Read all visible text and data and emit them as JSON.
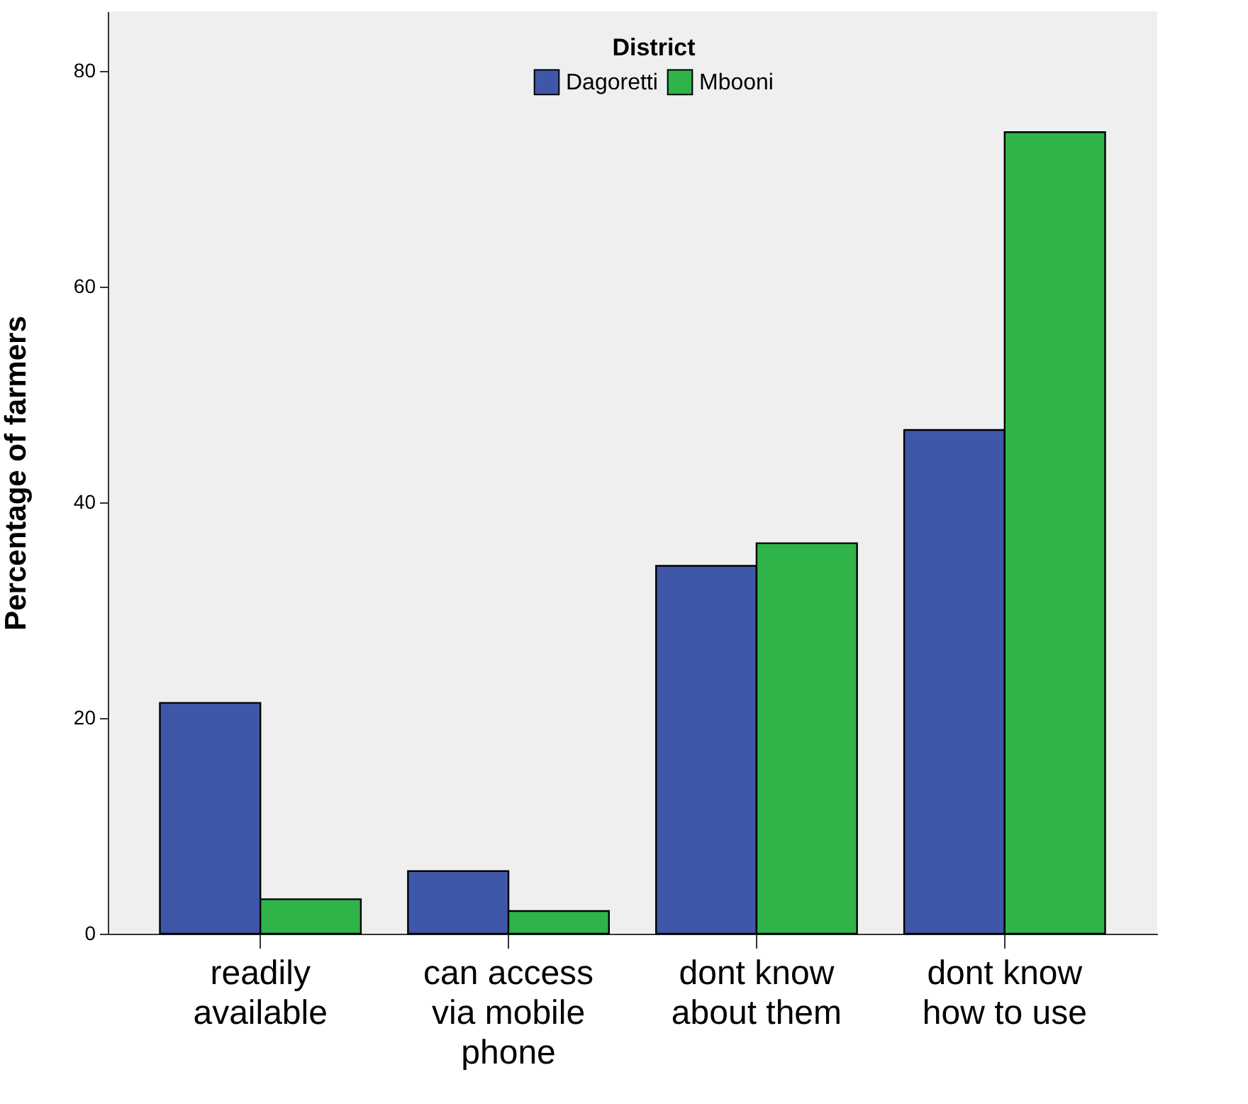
{
  "chart_data": {
    "type": "bar",
    "ylabel": "Percentage of farmers",
    "legend_title": "District",
    "categories": [
      "readily available",
      "can access via mobile phone",
      "dont know about them",
      "dont know how to use"
    ],
    "series": [
      {
        "name": "Dagoretti",
        "color": "#3f57a9",
        "values": [
          21.4,
          5.8,
          34.1,
          46.7
        ]
      },
      {
        "name": "Mbooni",
        "color": "#2fb44a",
        "values": [
          3.2,
          2.1,
          36.2,
          74.3
        ]
      }
    ],
    "ylim": [
      0,
      85.5
    ],
    "yticks": [
      0,
      20,
      40,
      60,
      80
    ],
    "grid": false,
    "legend": "top"
  }
}
